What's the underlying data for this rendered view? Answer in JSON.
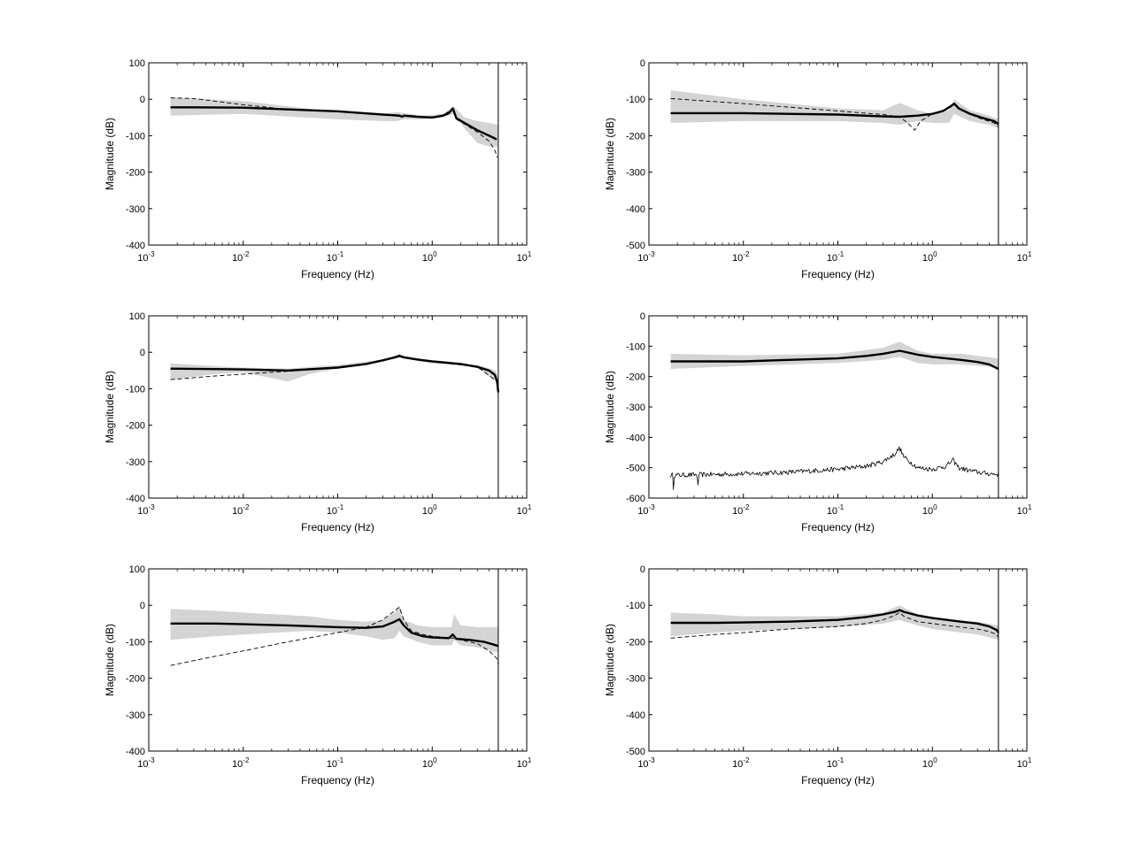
{
  "figure": {
    "background": "#ffffff"
  },
  "style": {
    "band_color": "#d4d4d4",
    "line_color": "#000000"
  },
  "chart_data": [
    {
      "type": "line",
      "xscale": "log",
      "xlim": [
        0.001,
        10
      ],
      "ylim": [
        -400,
        100
      ],
      "yticks": [
        100,
        0,
        -100,
        -200,
        -300,
        -400
      ],
      "xticks": [
        0.001,
        0.01,
        0.1,
        1,
        10
      ],
      "xlabel": "Frequency (Hz)",
      "ylabel": "Magnitude (dB)",
      "cutoff_x": 5,
      "band": {
        "x": [
          0.0017,
          0.01,
          0.1,
          0.3,
          0.42,
          0.5,
          0.8,
          1.3,
          1.7,
          2.2,
          3,
          4,
          5
        ],
        "upper": [
          5,
          -5,
          -35,
          -40,
          -35,
          -38,
          -45,
          -40,
          -20,
          -50,
          -60,
          -65,
          -70
        ],
        "lower": [
          -45,
          -40,
          -55,
          -60,
          -60,
          -55,
          -55,
          -50,
          -40,
          -80,
          -120,
          -130,
          -130
        ]
      },
      "series": [
        {
          "style": "solid-thick",
          "x": [
            0.0017,
            0.003,
            0.01,
            0.03,
            0.1,
            0.3,
            0.45,
            0.48,
            0.5,
            0.7,
            1,
            1.3,
            1.5,
            1.65,
            1.8,
            2.2,
            3,
            4,
            4.8
          ],
          "y": [
            -22,
            -22,
            -23,
            -28,
            -33,
            -42,
            -45,
            -48,
            -45,
            -48,
            -50,
            -45,
            -38,
            -25,
            -52,
            -65,
            -85,
            -100,
            -110
          ]
        },
        {
          "style": "dashed",
          "x": [
            0.0017,
            0.003,
            0.01,
            0.03,
            0.1,
            0.3,
            0.45,
            0.5,
            1,
            1.3,
            1.65,
            1.8,
            2.2,
            3,
            4,
            4.6,
            4.9
          ],
          "y": [
            4,
            2,
            -15,
            -28,
            -33,
            -42,
            -47,
            -44,
            -50,
            -45,
            -25,
            -55,
            -68,
            -90,
            -115,
            -140,
            -160
          ]
        }
      ]
    },
    {
      "type": "line",
      "xscale": "log",
      "xlim": [
        0.001,
        10
      ],
      "ylim": [
        -500,
        0
      ],
      "yticks": [
        0,
        -100,
        -200,
        -300,
        -400,
        -500
      ],
      "xticks": [
        0.001,
        0.01,
        0.1,
        1,
        10
      ],
      "xlabel": "Frequency (Hz)",
      "ylabel": "Magnitude (dB)",
      "cutoff_x": 5,
      "band": {
        "x": [
          0.0017,
          0.01,
          0.1,
          0.3,
          0.45,
          0.7,
          1,
          1.5,
          1.7,
          2.5,
          4,
          5
        ],
        "upper": [
          -75,
          -100,
          -125,
          -130,
          -110,
          -130,
          -140,
          -130,
          -100,
          -130,
          -145,
          -155
        ],
        "lower": [
          -165,
          -160,
          -160,
          -165,
          -170,
          -160,
          -165,
          -165,
          -140,
          -160,
          -170,
          -180
        ]
      },
      "series": [
        {
          "style": "solid-thick",
          "x": [
            0.0017,
            0.01,
            0.1,
            0.3,
            0.45,
            0.7,
            1,
            1.3,
            1.55,
            1.7,
            1.9,
            2.5,
            3.5,
            4.5,
            5
          ],
          "y": [
            -138,
            -138,
            -142,
            -147,
            -148,
            -145,
            -140,
            -132,
            -120,
            -112,
            -125,
            -140,
            -152,
            -160,
            -168
          ]
        },
        {
          "style": "dashed",
          "x": [
            0.0017,
            0.01,
            0.1,
            0.3,
            0.45,
            0.55,
            0.65,
            0.75,
            1,
            1.3,
            1.7,
            2,
            3,
            4.5,
            5
          ],
          "y": [
            -98,
            -112,
            -132,
            -142,
            -148,
            -165,
            -185,
            -160,
            -140,
            -130,
            -115,
            -130,
            -150,
            -165,
            -175
          ]
        }
      ]
    },
    {
      "type": "line",
      "xscale": "log",
      "xlim": [
        0.001,
        10
      ],
      "ylim": [
        -400,
        100
      ],
      "yticks": [
        100,
        0,
        -100,
        -200,
        -300,
        -400
      ],
      "xticks": [
        0.001,
        0.01,
        0.1,
        1,
        10
      ],
      "xlabel": "Frequency (Hz)",
      "ylabel": "Magnitude (dB)",
      "cutoff_x": 5,
      "band": {
        "x": [
          0.0017,
          0.005,
          0.01,
          0.03,
          0.05,
          0.1,
          0.3,
          0.45,
          1,
          3,
          4.7,
          5
        ],
        "upper": [
          -30,
          -38,
          -42,
          -45,
          -40,
          -35,
          -20,
          -5,
          -25,
          -35,
          -50,
          -70
        ],
        "lower": [
          -75,
          -60,
          -55,
          -80,
          -60,
          -45,
          -25,
          -15,
          -30,
          -40,
          -80,
          -110
        ]
      },
      "series": [
        {
          "style": "solid-thick",
          "x": [
            0.0017,
            0.005,
            0.01,
            0.03,
            0.1,
            0.2,
            0.3,
            0.4,
            0.45,
            0.5,
            0.7,
            1,
            2,
            3,
            4,
            4.6,
            4.85,
            5
          ],
          "y": [
            -45,
            -46,
            -47,
            -50,
            -42,
            -32,
            -22,
            -14,
            -10,
            -14,
            -20,
            -25,
            -32,
            -40,
            -50,
            -62,
            -80,
            -110
          ]
        },
        {
          "style": "dashed",
          "x": [
            0.0017,
            0.005,
            0.01,
            0.03,
            0.1,
            0.2,
            0.3,
            0.45,
            0.5,
            1,
            3,
            4.85,
            5
          ],
          "y": [
            -75,
            -65,
            -60,
            -52,
            -42,
            -32,
            -22,
            -8,
            -14,
            -25,
            -40,
            -80,
            -115
          ]
        }
      ]
    },
    {
      "type": "line",
      "xscale": "log",
      "xlim": [
        0.001,
        10
      ],
      "ylim": [
        -600,
        0
      ],
      "yticks": [
        0,
        -100,
        -200,
        -300,
        -400,
        -500,
        -600
      ],
      "xticks": [
        0.001,
        0.01,
        0.1,
        1,
        10
      ],
      "xlabel": "Frequency (Hz)",
      "ylabel": "Magnitude (dB)",
      "cutoff_x": 5,
      "band": {
        "x": [
          0.0017,
          0.01,
          0.1,
          0.3,
          0.45,
          0.7,
          1,
          2,
          5
        ],
        "upper": [
          -125,
          -130,
          -125,
          -105,
          -85,
          -115,
          -125,
          -125,
          -140
        ],
        "lower": [
          -175,
          -165,
          -155,
          -145,
          -135,
          -155,
          -160,
          -160,
          -170
        ]
      },
      "series": [
        {
          "style": "solid-thick",
          "x": [
            0.0017,
            0.003,
            0.01,
            0.03,
            0.1,
            0.2,
            0.3,
            0.4,
            0.45,
            0.5,
            0.7,
            1,
            2,
            3,
            4,
            5
          ],
          "y": [
            -150,
            -150,
            -150,
            -145,
            -140,
            -132,
            -125,
            -118,
            -115,
            -118,
            -128,
            -135,
            -145,
            -152,
            -160,
            -175
          ]
        },
        {
          "style": "noisy-thin",
          "x": [
            0.0017,
            0.005,
            0.01,
            0.03,
            0.1,
            0.2,
            0.3,
            0.4,
            0.45,
            0.5,
            0.7,
            1,
            1.4,
            1.65,
            1.9,
            2.5,
            3.5,
            5
          ],
          "y": [
            -525,
            -522,
            -520,
            -515,
            -505,
            -495,
            -480,
            -455,
            -435,
            -465,
            -500,
            -505,
            -495,
            -475,
            -500,
            -510,
            -518,
            -522
          ]
        }
      ]
    },
    {
      "type": "line",
      "xscale": "log",
      "xlim": [
        0.001,
        10
      ],
      "ylim": [
        -400,
        100
      ],
      "yticks": [
        100,
        0,
        -100,
        -200,
        -300,
        -400
      ],
      "xticks": [
        0.001,
        0.01,
        0.1,
        1,
        10
      ],
      "xlabel": "Frequency (Hz)",
      "ylabel": "Magnitude (dB)",
      "cutoff_x": 5,
      "band": {
        "x": [
          0.0017,
          0.005,
          0.01,
          0.05,
          0.1,
          0.2,
          0.3,
          0.4,
          0.45,
          0.5,
          0.7,
          1,
          1.6,
          1.7,
          2,
          3,
          5
        ],
        "upper": [
          -10,
          -15,
          -20,
          -30,
          -40,
          -45,
          -40,
          -20,
          0,
          -40,
          -55,
          -60,
          -60,
          -25,
          -55,
          -60,
          -60
        ],
        "lower": [
          -95,
          -85,
          -80,
          -70,
          -75,
          -85,
          -95,
          -90,
          -70,
          -85,
          -100,
          -110,
          -110,
          -95,
          -110,
          -115,
          -130
        ]
      },
      "series": [
        {
          "style": "solid-thick",
          "x": [
            0.0017,
            0.005,
            0.01,
            0.03,
            0.1,
            0.2,
            0.3,
            0.4,
            0.45,
            0.5,
            0.6,
            0.8,
            1,
            1.5,
            1.65,
            1.8,
            2.5,
            3.5,
            4.5,
            5
          ],
          "y": [
            -50,
            -50,
            -52,
            -55,
            -60,
            -62,
            -58,
            -45,
            -38,
            -55,
            -75,
            -85,
            -88,
            -90,
            -80,
            -92,
            -95,
            -100,
            -108,
            -112
          ]
        },
        {
          "style": "dashed",
          "x": [
            0.0017,
            0.005,
            0.01,
            0.03,
            0.1,
            0.2,
            0.3,
            0.4,
            0.45,
            0.5,
            0.6,
            0.8,
            1,
            1.65,
            2,
            3,
            4,
            4.8,
            5
          ],
          "y": [
            -165,
            -140,
            -125,
            -100,
            -75,
            -60,
            -40,
            -15,
            -5,
            -40,
            -70,
            -80,
            -85,
            -90,
            -95,
            -105,
            -125,
            -145,
            -160
          ]
        }
      ]
    },
    {
      "type": "line",
      "xscale": "log",
      "xlim": [
        0.001,
        10
      ],
      "ylim": [
        -500,
        0
      ],
      "yticks": [
        0,
        -100,
        -200,
        -300,
        -400,
        -500
      ],
      "xticks": [
        0.001,
        0.01,
        0.1,
        1,
        10
      ],
      "xlabel": "Frequency (Hz)",
      "ylabel": "Magnitude (dB)",
      "cutoff_x": 5,
      "band": {
        "x": [
          0.0017,
          0.005,
          0.01,
          0.1,
          0.3,
          0.45,
          0.7,
          1,
          3,
          5
        ],
        "upper": [
          -120,
          -125,
          -130,
          -130,
          -120,
          -100,
          -125,
          -135,
          -145,
          -155
        ],
        "lower": [
          -185,
          -175,
          -170,
          -160,
          -150,
          -140,
          -155,
          -165,
          -180,
          -195
        ]
      },
      "series": [
        {
          "style": "solid-thick",
          "x": [
            0.0017,
            0.005,
            0.01,
            0.03,
            0.1,
            0.2,
            0.3,
            0.4,
            0.45,
            0.5,
            0.7,
            1,
            2,
            3,
            4,
            4.8,
            5
          ],
          "y": [
            -148,
            -148,
            -147,
            -145,
            -140,
            -132,
            -125,
            -118,
            -113,
            -118,
            -128,
            -135,
            -145,
            -150,
            -158,
            -168,
            -175
          ]
        },
        {
          "style": "dashed",
          "x": [
            0.0017,
            0.005,
            0.01,
            0.03,
            0.1,
            0.2,
            0.3,
            0.4,
            0.45,
            0.5,
            0.7,
            1,
            2,
            3,
            4,
            4.8,
            5
          ],
          "y": [
            -190,
            -180,
            -175,
            -165,
            -158,
            -150,
            -140,
            -128,
            -120,
            -130,
            -145,
            -150,
            -160,
            -165,
            -172,
            -180,
            -188
          ]
        }
      ]
    }
  ]
}
